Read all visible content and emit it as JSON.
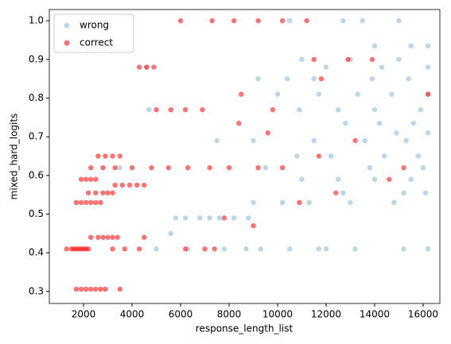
{
  "chart_data": {
    "type": "scatter",
    "x_label": "response_length_list",
    "y_label": "mixed_hard_logits",
    "xlim": [
      590,
      16690
    ],
    "ylim": [
      0.269,
      1.029
    ],
    "xticks": [
      2000,
      4000,
      6000,
      8000,
      10000,
      12000,
      14000,
      16000
    ],
    "yticks": [
      0.3,
      0.4,
      0.5,
      0.6,
      0.7,
      0.8,
      0.9,
      {
        "value": 1,
        "label": "1.0"
      }
    ],
    "legend": "upper left",
    "series": [
      {
        "name": "wrong",
        "color": "#1f77b4",
        "x": [
          5800,
          6200,
          6800,
          7200,
          7600,
          8200,
          8800,
          5600,
          6300,
          7800,
          8700,
          9300,
          10500,
          11700,
          12000,
          13200,
          15200,
          16200,
          9000,
          10200,
          11300,
          13000,
          14800,
          16100,
          15200,
          12700,
          11000,
          12500,
          14000,
          15500,
          9500,
          13800,
          16000,
          14400,
          12200,
          10800,
          15800,
          7500,
          9000,
          11500,
          13600,
          15300,
          16200,
          14900,
          12800,
          14200,
          15600,
          10900,
          12500,
          14000,
          15900,
          10000,
          11700,
          13300,
          14700,
          16200,
          9200,
          10400,
          11500,
          13900,
          15400,
          12000,
          14300,
          16200,
          11000,
          13000,
          15000,
          14000,
          15500,
          16200,
          12700,
          13500,
          15000,
          10500,
          4700,
          4600,
          3500,
          5000
        ],
        "values": [
          0.49,
          0.49,
          0.49,
          0.49,
          0.49,
          0.49,
          0.49,
          0.45,
          0.41,
          0.41,
          0.41,
          0.41,
          0.41,
          0.41,
          0.41,
          0.41,
          0.41,
          0.41,
          0.53,
          0.53,
          0.53,
          0.53,
          0.53,
          0.555,
          0.555,
          0.555,
          0.59,
          0.59,
          0.59,
          0.59,
          0.62,
          0.62,
          0.62,
          0.65,
          0.65,
          0.65,
          0.65,
          0.69,
          0.69,
          0.69,
          0.69,
          0.69,
          0.71,
          0.71,
          0.735,
          0.735,
          0.735,
          0.77,
          0.77,
          0.77,
          0.77,
          0.81,
          0.81,
          0.81,
          0.81,
          0.81,
          0.85,
          0.85,
          0.85,
          0.85,
          0.85,
          0.88,
          0.88,
          0.88,
          0.9,
          0.9,
          0.9,
          0.935,
          0.935,
          0.935,
          1,
          1,
          1,
          1,
          0.77,
          0.88,
          0.62,
          0.41
        ]
      },
      {
        "name": "correct",
        "color": "#ff0000",
        "x": [
          1700,
          1900,
          2100,
          2300,
          2500,
          2700,
          2900,
          3500,
          1300,
          1500,
          1600,
          1700,
          1800,
          1900,
          2000,
          2100,
          2200,
          3200,
          3700,
          4300,
          6200,
          7000,
          7400,
          2300,
          2600,
          2800,
          3000,
          3200,
          3400,
          4500,
          1700,
          1900,
          2100,
          2300,
          2500,
          2700,
          2200,
          2500,
          2800,
          3000,
          3200,
          3300,
          3600,
          3900,
          4200,
          4500,
          1900,
          2100,
          2300,
          2500,
          2300,
          2800,
          3300,
          4000,
          4800,
          5500,
          6300,
          7200,
          8000,
          9200,
          10200,
          2600,
          2900,
          3200,
          3500,
          4300,
          4600,
          4900,
          5000,
          5600,
          6200,
          6900,
          6000,
          7300,
          8200,
          9200,
          10200,
          11200,
          7800,
          9000,
          10900,
          12400,
          14600,
          11700,
          13200,
          9600,
          8400,
          11800,
          12900,
          13900,
          11500,
          16200,
          15200,
          8500,
          9800
        ],
        "values": [
          0.306,
          0.306,
          0.306,
          0.306,
          0.306,
          0.306,
          0.306,
          0.306,
          0.41,
          0.41,
          0.41,
          0.41,
          0.41,
          0.41,
          0.41,
          0.41,
          0.41,
          0.41,
          0.41,
          0.41,
          0.41,
          0.41,
          0.41,
          0.44,
          0.44,
          0.44,
          0.44,
          0.44,
          0.44,
          0.44,
          0.53,
          0.53,
          0.53,
          0.53,
          0.53,
          0.53,
          0.555,
          0.555,
          0.555,
          0.555,
          0.555,
          0.575,
          0.575,
          0.575,
          0.575,
          0.575,
          0.59,
          0.59,
          0.59,
          0.59,
          0.62,
          0.62,
          0.62,
          0.62,
          0.62,
          0.62,
          0.62,
          0.62,
          0.62,
          0.62,
          0.62,
          0.65,
          0.65,
          0.65,
          0.65,
          0.88,
          0.88,
          0.88,
          0.77,
          0.77,
          0.77,
          0.77,
          1,
          1,
          1,
          1,
          1,
          1,
          0.49,
          0.47,
          0.53,
          0.555,
          0.59,
          0.65,
          0.69,
          0.71,
          0.735,
          0.85,
          0.9,
          0.9,
          0.9,
          0.81,
          0.62,
          0.81,
          0.77
        ]
      }
    ]
  }
}
